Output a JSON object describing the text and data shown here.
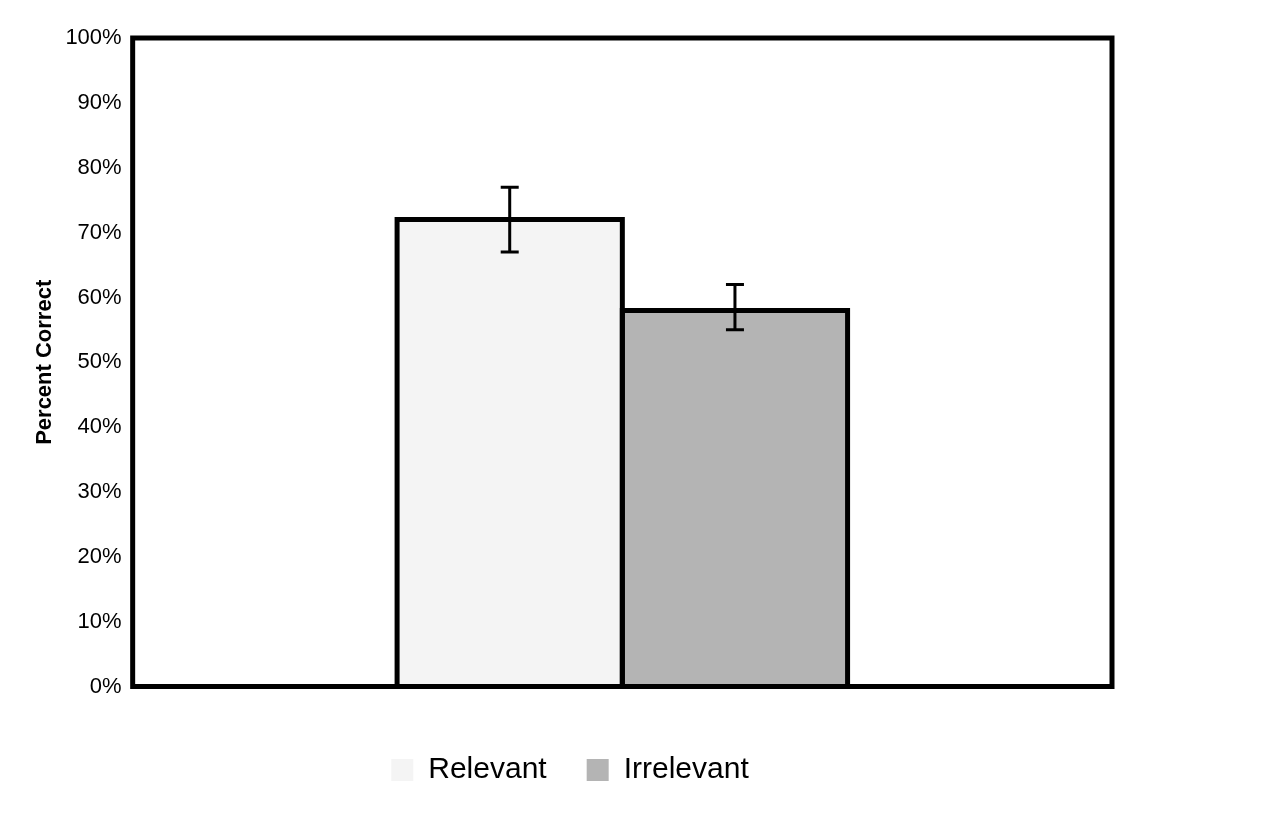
{
  "chart_data": {
    "type": "bar",
    "ylabel": "Percent Correct",
    "categories": [
      null
    ],
    "series": [
      {
        "name": "Relevant",
        "color": "#f4f4f4",
        "values": [
          72
        ],
        "errors": [
          [
            67,
            77
          ]
        ]
      },
      {
        "name": "Irrelevant",
        "color": "#b4b4b4",
        "values": [
          58
        ],
        "errors": [
          [
            55,
            62
          ]
        ]
      }
    ],
    "ylim": [
      0,
      100
    ],
    "yticks": [
      {
        "value": 0,
        "label": "0%"
      },
      {
        "value": 10,
        "label": "10%"
      },
      {
        "value": 20,
        "label": "20%"
      },
      {
        "value": 30,
        "label": "30%"
      },
      {
        "value": 40,
        "label": "40%"
      },
      {
        "value": 50,
        "label": "50%"
      },
      {
        "value": 60,
        "label": "60%"
      },
      {
        "value": 70,
        "label": "70%"
      },
      {
        "value": 80,
        "label": "80%"
      },
      {
        "value": 90,
        "label": "90%"
      },
      {
        "value": 100,
        "label": "100%"
      }
    ],
    "grid": false,
    "legend": "bottom"
  }
}
